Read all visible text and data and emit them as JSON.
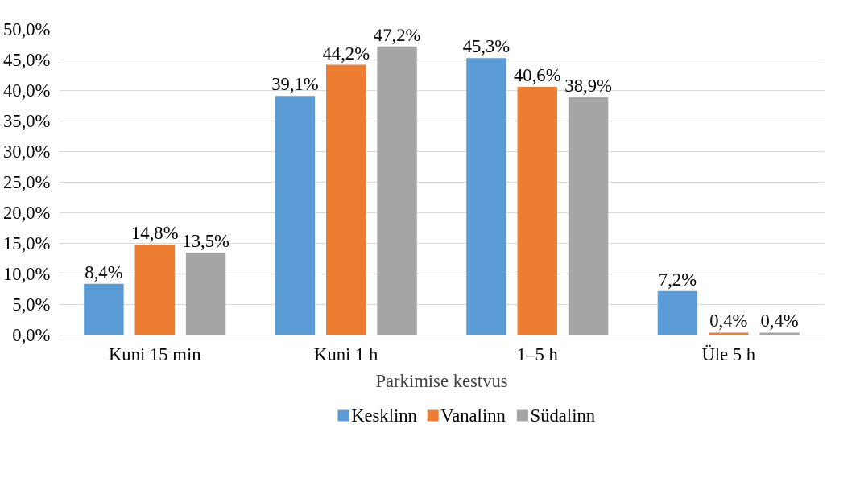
{
  "chart_data": {
    "type": "bar",
    "xlabel": "Parkimise kestvus",
    "categories": [
      "Kuni 15 min",
      "Kuni 1 h",
      "1–5 h",
      "Üle 5 h"
    ],
    "series": [
      {
        "name": "Kesklinn",
        "color": "#5b9bd5",
        "values": [
          8.4,
          39.1,
          45.3,
          7.2
        ],
        "value_labels": [
          "8,4%",
          "39,1%",
          "45,3%",
          "7,2%"
        ]
      },
      {
        "name": "Vanalinn",
        "color": "#ed7d31",
        "values": [
          14.8,
          44.2,
          40.6,
          0.4
        ],
        "value_labels": [
          "14,8%",
          "44,2%",
          "40,6%",
          "0,4%"
        ]
      },
      {
        "name": "Südalinn",
        "color": "#a5a5a5",
        "values": [
          13.5,
          47.2,
          38.9,
          0.4
        ],
        "value_labels": [
          "13,5%",
          "47,2%",
          "38,9%",
          "0,4%"
        ]
      }
    ],
    "ylim": [
      0,
      50
    ],
    "yticks": [
      {
        "value": 0,
        "label": "0,0%"
      },
      {
        "value": 5,
        "label": "5,0%"
      },
      {
        "value": 10,
        "label": "10,0%"
      },
      {
        "value": 15,
        "label": "15,0%"
      },
      {
        "value": 20,
        "label": "20,0%"
      },
      {
        "value": 25,
        "label": "25,0%"
      },
      {
        "value": 30,
        "label": "30,0%"
      },
      {
        "value": 35,
        "label": "35,0%"
      },
      {
        "value": 40,
        "label": "40,0%"
      },
      {
        "value": 45,
        "label": "45,0%"
      },
      {
        "value": 50,
        "label": "50,0%"
      }
    ],
    "grid": "y",
    "legend": "bottom"
  }
}
